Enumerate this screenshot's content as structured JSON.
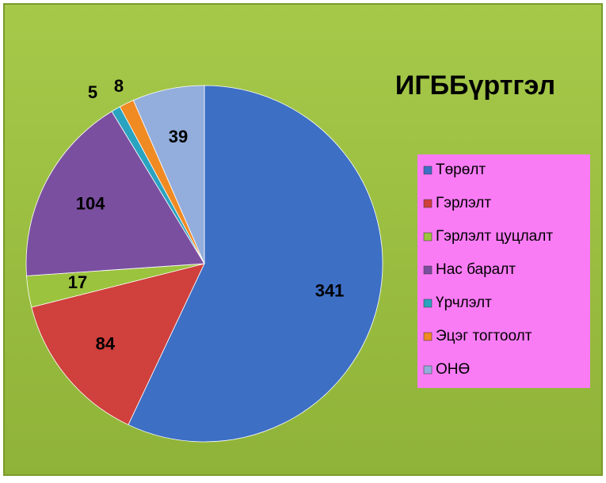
{
  "chart_data": {
    "type": "pie",
    "title": "ИГББүртгэл",
    "categories": [
      "Төрөлт",
      "Гэрлэлт",
      "Гэрлэлт цуцлалт",
      "Нас баралт",
      "Үрчлэлт",
      "Эцэг тогтоолт",
      "ОНӨ"
    ],
    "values": [
      341,
      84,
      17,
      104,
      5,
      8,
      39
    ],
    "colors": [
      "#3d6fc4",
      "#d0403c",
      "#9bc33e",
      "#7b4fa0",
      "#2aa3c0",
      "#f08a23",
      "#93aedc"
    ],
    "legend": "right"
  }
}
